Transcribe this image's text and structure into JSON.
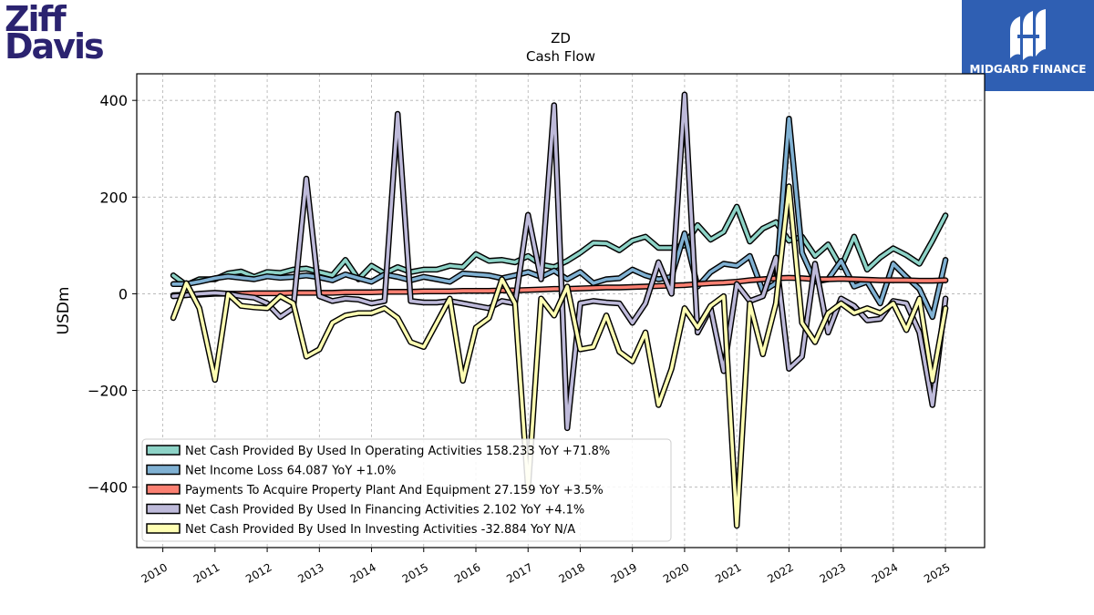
{
  "logos": {
    "left_line1": "Ziff",
    "left_line2": "Davis",
    "right_brand": "MIDGARD FINANCE"
  },
  "chart_data": {
    "type": "line",
    "title": "ZD",
    "subtitle": "Cash Flow",
    "ylabel": "USDm",
    "xlabel": "",
    "xlim": [
      2009.5,
      2025.75
    ],
    "ylim": [
      -525,
      455
    ],
    "yticks": [
      400,
      200,
      0,
      -200,
      -400
    ],
    "ytick_labels": [
      "400",
      "200",
      "0",
      "−200",
      "−400"
    ],
    "xticks": [
      "2010",
      "2011",
      "2012",
      "2013",
      "2014",
      "2015",
      "2016",
      "2017",
      "2018",
      "2019",
      "2020",
      "2021",
      "2022",
      "2023",
      "2024",
      "2025"
    ],
    "grid": true,
    "legend_position": "lower-left",
    "series": [
      {
        "name": "Net Cash Provided By Used In Operating Activities",
        "legend": "Net Cash Provided By Used In Operating Activities  158.233 YoY +71.8%",
        "color": "#8dd3c7",
        "x": [
          2010.2,
          2010.45,
          2010.7,
          2011.0,
          2011.25,
          2011.5,
          2011.75,
          2012.0,
          2012.25,
          2012.5,
          2012.75,
          2013.0,
          2013.25,
          2013.5,
          2013.75,
          2014.0,
          2014.25,
          2014.5,
          2014.75,
          2015.0,
          2015.25,
          2015.5,
          2015.75,
          2016.0,
          2016.25,
          2016.5,
          2016.75,
          2017.0,
          2017.25,
          2017.5,
          2017.75,
          2018.0,
          2018.25,
          2018.5,
          2018.75,
          2019.0,
          2019.25,
          2019.5,
          2019.75,
          2020.0,
          2020.25,
          2020.5,
          2020.75,
          2021.0,
          2021.25,
          2021.5,
          2021.75,
          2022.0,
          2022.25,
          2022.5,
          2022.75,
          2023.0,
          2023.25,
          2023.5,
          2023.75,
          2024.0,
          2024.25,
          2024.5,
          2024.75,
          2025.0
        ],
        "values": [
          38,
          18,
          30,
          30,
          42,
          46,
          35,
          45,
          43,
          50,
          52,
          45,
          38,
          70,
          30,
          58,
          42,
          55,
          45,
          50,
          50,
          58,
          55,
          82,
          68,
          70,
          65,
          78,
          60,
          55,
          68,
          85,
          105,
          104,
          90,
          110,
          118,
          95,
          95,
          100,
          142,
          112,
          128,
          180,
          108,
          135,
          148,
          110,
          118,
          78,
          102,
          55,
          118,
          50,
          75,
          94,
          80,
          62,
          110,
          162
        ]
      },
      {
        "name": "Net Income Loss",
        "legend": "Net Income Loss  64.087 YoY +1.0%",
        "color": "#80b1d3",
        "x": [
          2010.2,
          2010.45,
          2010.7,
          2011.0,
          2011.25,
          2011.5,
          2011.75,
          2012.0,
          2012.25,
          2012.5,
          2012.75,
          2013.0,
          2013.25,
          2013.5,
          2013.75,
          2014.0,
          2014.25,
          2014.5,
          2014.75,
          2015.0,
          2015.25,
          2015.5,
          2015.75,
          2016.0,
          2016.25,
          2016.5,
          2016.75,
          2017.0,
          2017.25,
          2017.5,
          2017.75,
          2018.0,
          2018.25,
          2018.5,
          2018.75,
          2019.0,
          2019.25,
          2019.5,
          2019.75,
          2020.0,
          2020.25,
          2020.5,
          2020.75,
          2021.0,
          2021.25,
          2021.5,
          2021.75,
          2022.0,
          2022.25,
          2022.5,
          2022.75,
          2023.0,
          2023.25,
          2023.5,
          2023.75,
          2024.0,
          2024.25,
          2024.5,
          2024.75,
          2025.0
        ],
        "values": [
          20,
          20,
          25,
          32,
          36,
          33,
          30,
          36,
          33,
          35,
          38,
          34,
          28,
          40,
          32,
          25,
          40,
          35,
          28,
          35,
          30,
          25,
          42,
          40,
          38,
          32,
          38,
          45,
          35,
          48,
          30,
          45,
          22,
          30,
          32,
          50,
          38,
          30,
          35,
          125,
          15,
          45,
          62,
          58,
          78,
          5,
          22,
          362,
          85,
          25,
          30,
          68,
          15,
          25,
          -20,
          62,
          35,
          10,
          -48,
          70
        ]
      },
      {
        "name": "Payments To Acquire Property Plant And Equipment",
        "legend": "Payments To Acquire Property Plant And Equipment  27.159 YoY +3.5%",
        "color": "#fb8072",
        "x": [
          2010.2,
          2010.45,
          2010.7,
          2011.0,
          2011.25,
          2011.5,
          2011.75,
          2012.0,
          2012.25,
          2012.5,
          2012.75,
          2013.0,
          2013.25,
          2013.5,
          2013.75,
          2014.0,
          2014.25,
          2014.5,
          2014.75,
          2015.0,
          2015.25,
          2015.5,
          2015.75,
          2016.0,
          2016.25,
          2016.5,
          2016.75,
          2017.0,
          2017.25,
          2017.5,
          2017.75,
          2018.0,
          2018.25,
          2018.5,
          2018.75,
          2019.0,
          2019.25,
          2019.5,
          2019.75,
          2020.0,
          2020.25,
          2020.5,
          2020.75,
          2021.0,
          2021.25,
          2021.5,
          2021.75,
          2022.0,
          2022.25,
          2022.5,
          2022.75,
          2023.0,
          2023.25,
          2023.5,
          2023.75,
          2024.0,
          2024.25,
          2024.5,
          2024.75,
          2025.0
        ],
        "values": [
          -3,
          -2,
          -2,
          0,
          0,
          0,
          1,
          1,
          1,
          2,
          2,
          2,
          2,
          3,
          3,
          3,
          4,
          4,
          4,
          5,
          5,
          5,
          6,
          6,
          6,
          7,
          7,
          8,
          9,
          10,
          10,
          11,
          12,
          13,
          13,
          14,
          15,
          16,
          17,
          18,
          20,
          22,
          23,
          25,
          28,
          30,
          32,
          33,
          32,
          30,
          30,
          31,
          30,
          29,
          28,
          28,
          28,
          27,
          27,
          28
        ]
      },
      {
        "name": "Net Cash Provided By Used In Financing Activities",
        "legend": "Net Cash Provided By Used In Financing Activities  2.102 YoY +4.1%",
        "color": "#bebada",
        "x": [
          2010.2,
          2010.45,
          2010.7,
          2011.0,
          2011.25,
          2011.5,
          2011.75,
          2012.0,
          2012.25,
          2012.5,
          2012.75,
          2013.0,
          2013.25,
          2013.5,
          2013.75,
          2014.0,
          2014.25,
          2014.5,
          2014.75,
          2015.0,
          2015.25,
          2015.5,
          2015.75,
          2016.0,
          2016.25,
          2016.5,
          2016.75,
          2017.0,
          2017.25,
          2017.5,
          2017.75,
          2018.0,
          2018.25,
          2018.5,
          2018.75,
          2019.0,
          2019.25,
          2019.5,
          2019.75,
          2020.0,
          2020.25,
          2020.5,
          2020.75,
          2021.0,
          2021.25,
          2021.5,
          2021.75,
          2022.0,
          2022.25,
          2022.5,
          2022.75,
          2023.0,
          2023.25,
          2023.5,
          2023.75,
          2024.0,
          2024.25,
          2024.5,
          2024.75,
          2025.0
        ],
        "values": [
          -5,
          -3,
          0,
          2,
          0,
          -5,
          -8,
          -20,
          -48,
          -30,
          238,
          -5,
          -15,
          -10,
          -12,
          -20,
          -15,
          372,
          -15,
          -18,
          -18,
          -15,
          -20,
          -25,
          -30,
          -15,
          -20,
          163,
          30,
          390,
          -278,
          -20,
          -15,
          -18,
          -20,
          -60,
          -20,
          65,
          0,
          412,
          -80,
          -30,
          -160,
          20,
          -15,
          -5,
          75,
          -155,
          -130,
          62,
          -80,
          -10,
          -25,
          -55,
          -52,
          -15,
          -20,
          -80,
          -230,
          -10
        ]
      },
      {
        "name": "Net Cash Provided By Used In Investing Activities",
        "legend": "Net Cash Provided By Used In Investing Activities  -32.884 YoY N/A",
        "color": "#ffffb3",
        "x": [
          2010.2,
          2010.45,
          2010.7,
          2011.0,
          2011.25,
          2011.5,
          2011.75,
          2012.0,
          2012.25,
          2012.5,
          2012.75,
          2013.0,
          2013.25,
          2013.5,
          2013.75,
          2014.0,
          2014.25,
          2014.5,
          2014.75,
          2015.0,
          2015.25,
          2015.5,
          2015.75,
          2016.0,
          2016.25,
          2016.5,
          2016.75,
          2017.0,
          2017.25,
          2017.5,
          2017.75,
          2018.0,
          2018.25,
          2018.5,
          2018.75,
          2019.0,
          2019.25,
          2019.5,
          2019.75,
          2020.0,
          2020.25,
          2020.5,
          2020.75,
          2021.0,
          2021.25,
          2021.5,
          2021.75,
          2022.0,
          2022.25,
          2022.5,
          2022.75,
          2023.0,
          2023.25,
          2023.5,
          2023.75,
          2024.0,
          2024.25,
          2024.5,
          2024.75,
          2025.0
        ],
        "values": [
          -50,
          22,
          -30,
          -178,
          0,
          -25,
          -28,
          -30,
          -5,
          -20,
          -130,
          -115,
          -60,
          -45,
          -40,
          -40,
          -30,
          -50,
          -100,
          -110,
          -60,
          -10,
          -180,
          -70,
          -50,
          30,
          -20,
          -405,
          -10,
          -45,
          15,
          -115,
          -110,
          -45,
          -120,
          -140,
          -80,
          -230,
          -155,
          -30,
          -70,
          -25,
          -5,
          -480,
          -20,
          -125,
          -20,
          222,
          -60,
          -100,
          -40,
          -20,
          -40,
          -30,
          -40,
          -20,
          -75,
          -10,
          -180,
          -30
        ]
      }
    ]
  }
}
